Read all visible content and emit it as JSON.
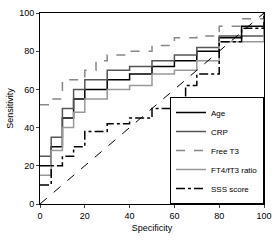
{
  "chart_data": {
    "type": "line",
    "x_label": "Specificity",
    "y_label": "Sensitivity",
    "xlim": [
      0,
      100
    ],
    "ylim": [
      0,
      100
    ],
    "xticks": [
      0,
      20,
      40,
      60,
      80,
      100
    ],
    "yticks": [
      0,
      20,
      40,
      60,
      80,
      100
    ],
    "grid": false,
    "legend": "bottom right",
    "series": [
      {
        "name": "Age",
        "color": "#000000",
        "line_style": "solid",
        "x": [
          0,
          5,
          10,
          15,
          20,
          30,
          40,
          50,
          60,
          70,
          80,
          90,
          100
        ],
        "values": [
          20,
          30,
          45,
          55,
          60,
          65,
          68,
          72,
          75,
          80,
          87,
          93,
          100
        ]
      },
      {
        "name": "CRP",
        "color": "#555555",
        "line_style": "solid",
        "x": [
          0,
          5,
          10,
          15,
          20,
          30,
          40,
          50,
          60,
          70,
          80,
          100
        ],
        "values": [
          25,
          35,
          50,
          60,
          65,
          70,
          72,
          75,
          78,
          82,
          88,
          100
        ]
      },
      {
        "name": "Free T3",
        "color": "#888888",
        "line_style": "dash",
        "x": [
          0,
          5,
          10,
          20,
          25,
          30,
          40,
          50,
          60,
          70,
          80,
          90,
          100
        ],
        "values": [
          52,
          55,
          65,
          70,
          75,
          78,
          80,
          83,
          87,
          88,
          93,
          97,
          100
        ]
      },
      {
        "name": "FT4/fT3 ratio",
        "color": "#999999",
        "line_style": "solid",
        "x": [
          0,
          5,
          10,
          15,
          20,
          30,
          40,
          50,
          60,
          70,
          80,
          100
        ],
        "values": [
          15,
          28,
          40,
          48,
          55,
          60,
          62,
          68,
          70,
          75,
          85,
          100
        ]
      },
      {
        "name": "SSS score",
        "color": "#000000",
        "line_style": "dashdot",
        "x": [
          0,
          5,
          10,
          15,
          20,
          30,
          40,
          50,
          60,
          65,
          70,
          80,
          90,
          100
        ],
        "values": [
          10,
          20,
          25,
          30,
          38,
          42,
          45,
          50,
          55,
          62,
          68,
          85,
          92,
          100
        ]
      },
      {
        "color": "#000000",
        "line_style": "dash",
        "x": [
          0,
          100
        ],
        "values": [
          0,
          100
        ]
      }
    ]
  }
}
